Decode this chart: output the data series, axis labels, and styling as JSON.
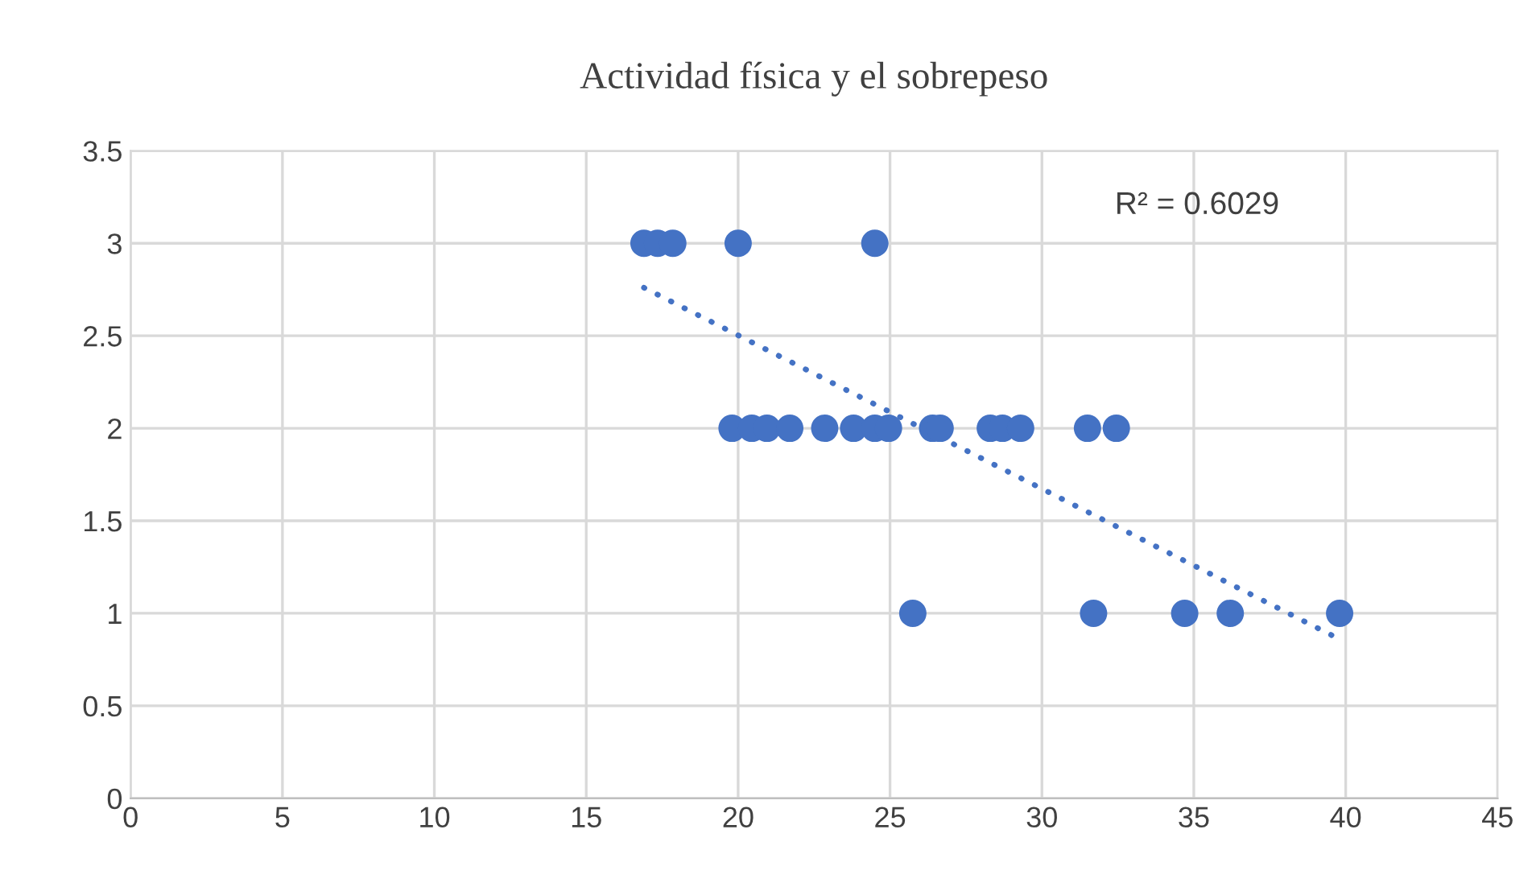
{
  "chart_data": {
    "type": "scatter",
    "title": "Actividad física y el sobrepeso",
    "series": [
      {
        "color": "#4472c4",
        "marker": "circle",
        "x": [
          16.9,
          17.35,
          17.85,
          20.0,
          24.5,
          19.8,
          20.45,
          20.95,
          21.7,
          22.85,
          23.8,
          24.5,
          24.95,
          26.4,
          26.65,
          28.3,
          28.7,
          29.3,
          31.5,
          32.45,
          25.75,
          31.7,
          34.7,
          36.2,
          39.8
        ],
        "values": [
          3,
          3,
          3,
          3,
          3,
          2,
          2,
          2,
          2,
          2,
          2,
          2,
          2,
          2,
          2,
          2,
          2,
          2,
          2,
          2,
          1,
          1,
          1,
          1,
          1
        ]
      },
      {
        "type": "line",
        "color": "#4472c4",
        "line_style": "dotted",
        "x": [
          16.9,
          39.8
        ],
        "values": [
          2.76,
          0.86
        ]
      }
    ],
    "annotations": [
      "R² = 0.6029"
    ],
    "xlim": [
      0,
      45
    ],
    "xticks": [
      0,
      5,
      10,
      15,
      20,
      25,
      30,
      35,
      40,
      45
    ],
    "ylim": [
      0,
      3.5
    ],
    "yticks": [
      0,
      0.5,
      1,
      1.5,
      2,
      2.5,
      3,
      3.5
    ],
    "grid": true,
    "legend": false
  }
}
